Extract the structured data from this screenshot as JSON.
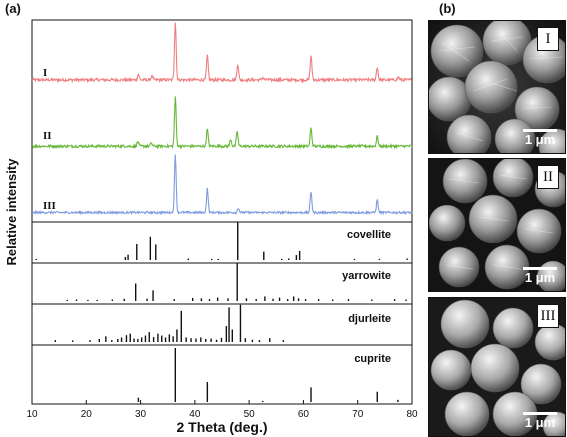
{
  "panel_a_label": "(a)",
  "panel_b_label": "(b)",
  "chart_data": {
    "type": "line",
    "xlabel": "2 Theta (deg.)",
    "ylabel": "Relative intensity",
    "xlim": [
      10,
      80
    ],
    "xticks": [
      10,
      20,
      30,
      40,
      50,
      60,
      70,
      80
    ],
    "colors": {
      "I": "#ef7f7f",
      "II": "#66b838",
      "III": "#7e9ae0"
    },
    "series": [
      {
        "name": "I",
        "baseline": 0.14,
        "noise": 0.025,
        "peaks": [
          [
            29.6,
            0.1
          ],
          [
            32.1,
            0.07
          ],
          [
            36.4,
            1.0
          ],
          [
            42.3,
            0.42
          ],
          [
            47.9,
            0.28
          ],
          [
            52.5,
            0.04
          ],
          [
            61.4,
            0.42
          ],
          [
            73.6,
            0.22
          ],
          [
            77.5,
            0.05
          ]
        ]
      },
      {
        "name": "II",
        "baseline": 0.1,
        "noise": 0.022,
        "peaks": [
          [
            29.5,
            0.08
          ],
          [
            32.0,
            0.05
          ],
          [
            36.4,
            0.84
          ],
          [
            42.3,
            0.29
          ],
          [
            46.6,
            0.12
          ],
          [
            47.8,
            0.26
          ],
          [
            61.4,
            0.31
          ],
          [
            73.6,
            0.17
          ]
        ]
      },
      {
        "name": "III",
        "baseline": 0.06,
        "noise": 0.018,
        "peaks": [
          [
            36.4,
            1.0
          ],
          [
            42.3,
            0.41
          ],
          [
            48.0,
            0.08
          ],
          [
            61.4,
            0.36
          ],
          [
            73.6,
            0.22
          ]
        ]
      }
    ],
    "references": [
      {
        "name": "covellite",
        "lines": [
          [
            10.8,
            0.03
          ],
          [
            27.2,
            0.08
          ],
          [
            27.7,
            0.14
          ],
          [
            29.3,
            0.42
          ],
          [
            31.8,
            0.61
          ],
          [
            32.8,
            0.41
          ],
          [
            38.8,
            0.04
          ],
          [
            43.1,
            0.03
          ],
          [
            44.3,
            0.03
          ],
          [
            47.9,
            1.0
          ],
          [
            52.7,
            0.22
          ],
          [
            56.0,
            0.03
          ],
          [
            57.3,
            0.04
          ],
          [
            58.7,
            0.13
          ],
          [
            59.3,
            0.24
          ],
          [
            69.4,
            0.03
          ],
          [
            74.0,
            0.03
          ],
          [
            79.1,
            0.04
          ]
        ]
      },
      {
        "name": "yarrowite",
        "lines": [
          [
            16.5,
            0.03
          ],
          [
            18.2,
            0.04
          ],
          [
            20.3,
            0.03
          ],
          [
            22.0,
            0.03
          ],
          [
            24.8,
            0.04
          ],
          [
            27.0,
            0.06
          ],
          [
            29.1,
            0.46
          ],
          [
            31.2,
            0.06
          ],
          [
            32.3,
            0.28
          ],
          [
            36.2,
            0.05
          ],
          [
            39.6,
            0.08
          ],
          [
            41.2,
            0.07
          ],
          [
            42.7,
            0.05
          ],
          [
            44.2,
            0.09
          ],
          [
            46.1,
            0.07
          ],
          [
            47.8,
            1.0
          ],
          [
            49.5,
            0.07
          ],
          [
            51.3,
            0.05
          ],
          [
            52.9,
            0.12
          ],
          [
            54.4,
            0.06
          ],
          [
            55.6,
            0.09
          ],
          [
            57.1,
            0.05
          ],
          [
            58.2,
            0.12
          ],
          [
            59.1,
            0.07
          ],
          [
            60.4,
            0.05
          ],
          [
            62.8,
            0.05
          ],
          [
            65.4,
            0.04
          ],
          [
            68.3,
            0.05
          ],
          [
            72.6,
            0.04
          ],
          [
            76.8,
            0.05
          ],
          [
            78.9,
            0.04
          ]
        ]
      },
      {
        "name": "djurleite",
        "lines": [
          [
            14.3,
            0.05
          ],
          [
            17.5,
            0.04
          ],
          [
            20.7,
            0.05
          ],
          [
            22.4,
            0.08
          ],
          [
            23.6,
            0.15
          ],
          [
            24.7,
            0.05
          ],
          [
            25.8,
            0.08
          ],
          [
            26.5,
            0.12
          ],
          [
            27.4,
            0.18
          ],
          [
            28.1,
            0.22
          ],
          [
            28.8,
            0.09
          ],
          [
            29.5,
            0.08
          ],
          [
            30.2,
            0.12
          ],
          [
            30.9,
            0.17
          ],
          [
            31.6,
            0.26
          ],
          [
            32.4,
            0.13
          ],
          [
            33.2,
            0.22
          ],
          [
            33.9,
            0.17
          ],
          [
            34.6,
            0.12
          ],
          [
            35.3,
            0.2
          ],
          [
            36.0,
            0.15
          ],
          [
            36.7,
            0.33
          ],
          [
            37.5,
            0.82
          ],
          [
            38.4,
            0.12
          ],
          [
            39.3,
            0.1
          ],
          [
            40.2,
            0.09
          ],
          [
            41.1,
            0.12
          ],
          [
            42.0,
            0.08
          ],
          [
            43.0,
            0.09
          ],
          [
            44.0,
            0.06
          ],
          [
            44.9,
            0.11
          ],
          [
            45.8,
            0.42
          ],
          [
            46.3,
            0.91
          ],
          [
            46.9,
            0.33
          ],
          [
            48.4,
            0.98
          ],
          [
            49.3,
            0.1
          ],
          [
            50.6,
            0.06
          ],
          [
            51.9,
            0.05
          ],
          [
            53.8,
            0.1
          ],
          [
            56.3,
            0.05
          ]
        ]
      },
      {
        "name": "cuprite",
        "lines": [
          [
            29.6,
            0.08
          ],
          [
            36.4,
            1.0
          ],
          [
            42.3,
            0.37
          ],
          [
            52.5,
            0.02
          ],
          [
            61.4,
            0.27
          ],
          [
            73.6,
            0.19
          ],
          [
            77.4,
            0.04
          ]
        ]
      }
    ]
  },
  "sem_images": [
    {
      "label": "I",
      "scale_text": "1 μm"
    },
    {
      "label": "II",
      "scale_text": "1 μm"
    },
    {
      "label": "III",
      "scale_text": "1 μm"
    }
  ]
}
